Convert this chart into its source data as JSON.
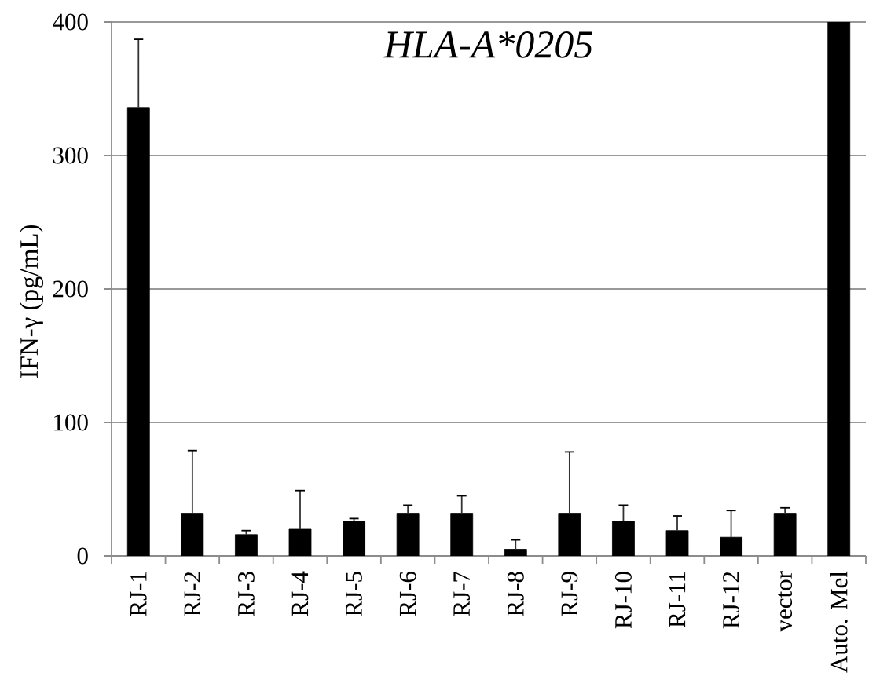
{
  "chart_data": {
    "type": "bar",
    "title": "HLA-A*0205",
    "ylabel": "IFN-γ (pg/mL)",
    "categories": [
      "RJ-1",
      "RJ-2",
      "RJ-3",
      "RJ-4",
      "RJ-5",
      "RJ-6",
      "RJ-7",
      "RJ-8",
      "RJ-9",
      "RJ-10",
      "RJ-11",
      "RJ-12",
      "vector",
      "Auto. Mel"
    ],
    "values": [
      336,
      32,
      16,
      20,
      26,
      32,
      32,
      5,
      32,
      26,
      19,
      14,
      32,
      400
    ],
    "errors": [
      [
        336,
        387
      ],
      [
        32,
        79
      ],
      [
        16,
        19
      ],
      [
        20,
        49
      ],
      [
        26,
        28
      ],
      [
        32,
        38
      ],
      [
        32,
        45
      ],
      [
        5,
        12
      ],
      [
        32,
        78
      ],
      [
        26,
        38
      ],
      [
        19,
        30
      ],
      [
        14,
        34
      ],
      [
        32,
        36
      ],
      null
    ],
    "color": "#000000",
    "ylim": [
      0,
      400
    ],
    "yticks": [
      0,
      100,
      200,
      300,
      400
    ],
    "grid": "y"
  }
}
